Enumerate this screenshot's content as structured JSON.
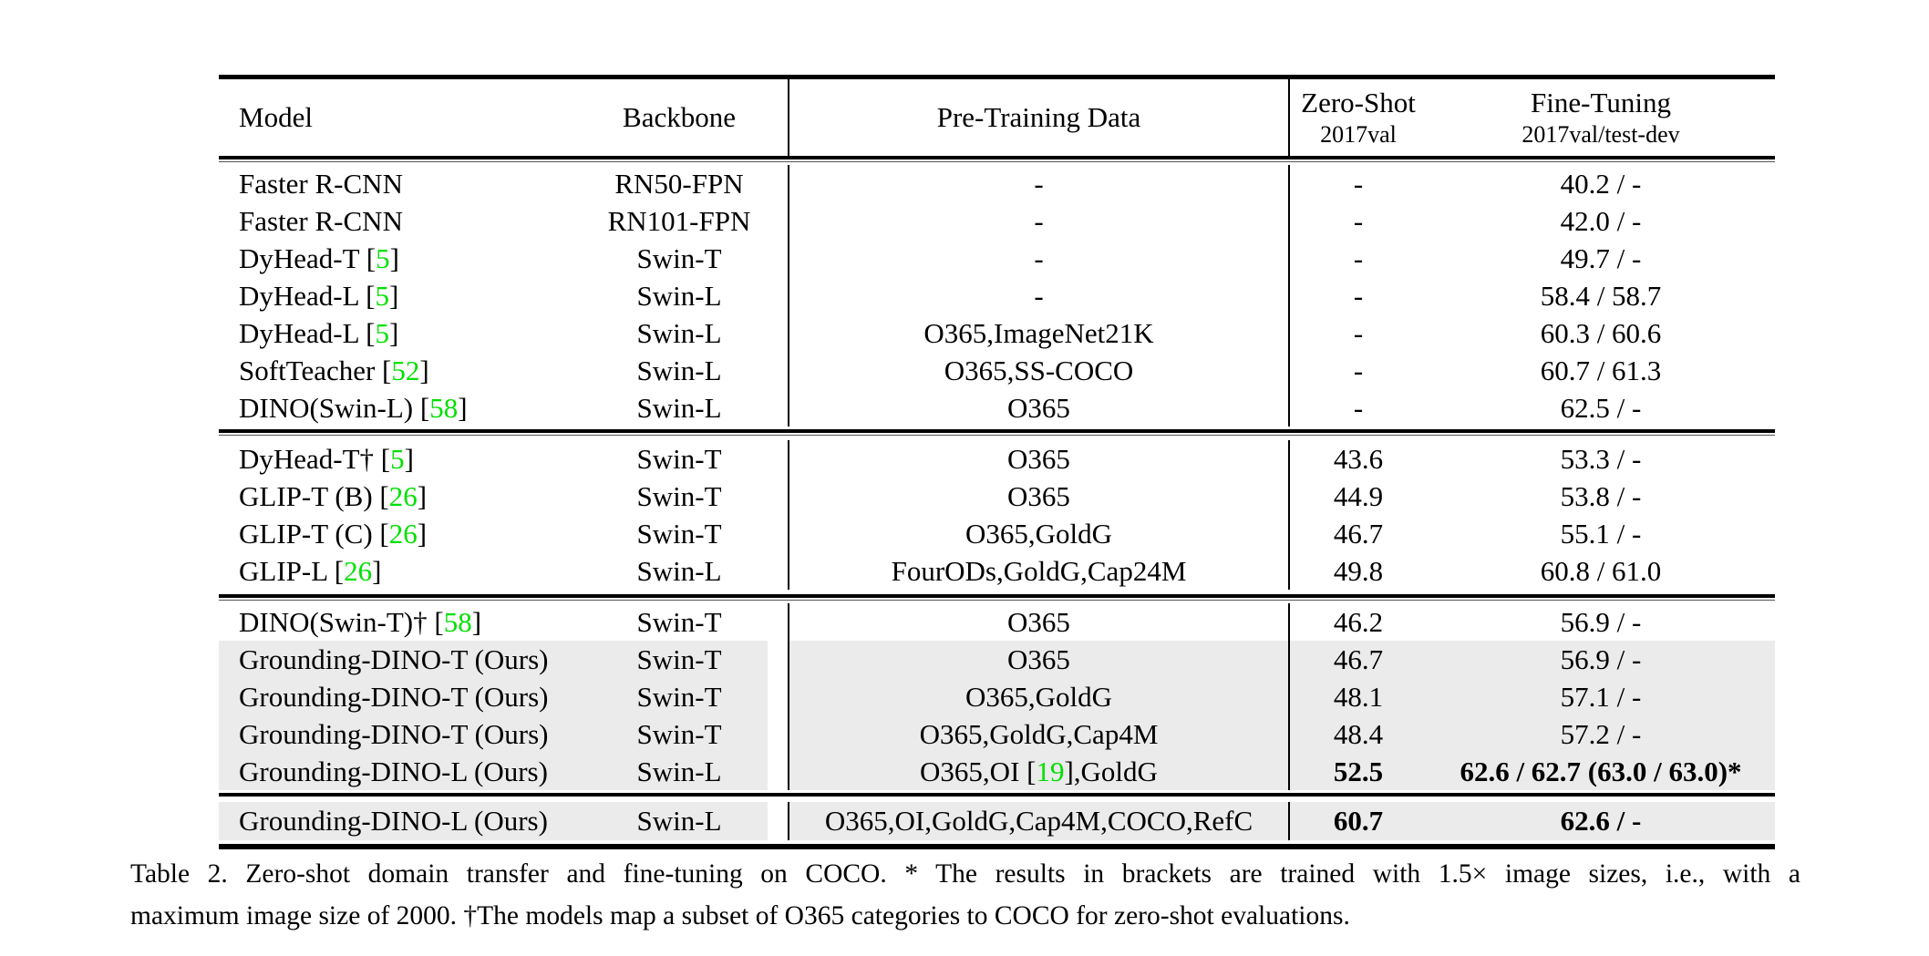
{
  "colors": {
    "citation_green": "#00e000",
    "row_highlight": "#ebebeb",
    "rule_black": "#000000"
  },
  "header": {
    "model": "Model",
    "backbone": "Backbone",
    "pretraining": "Pre-Training Data",
    "zero_shot_title": "Zero-Shot",
    "zero_shot_sub": "2017val",
    "fine_tuning_title": "Fine-Tuning",
    "fine_tuning_sub": "2017val/test-dev"
  },
  "sections": [
    {
      "rows": [
        {
          "model": [
            {
              "t": "Faster R-CNN"
            }
          ],
          "backbone": "RN50-FPN",
          "pretrain": [
            {
              "t": "-"
            }
          ],
          "zero_shot": "-",
          "fine_tune": "40.2 / -",
          "highlight": false,
          "bold": false
        },
        {
          "model": [
            {
              "t": "Faster R-CNN"
            }
          ],
          "backbone": "RN101-FPN",
          "pretrain": [
            {
              "t": "-"
            }
          ],
          "zero_shot": "-",
          "fine_tune": "42.0 / -",
          "highlight": false,
          "bold": false
        },
        {
          "model": [
            {
              "t": "DyHead-T ["
            },
            {
              "t": "5",
              "cite": true
            },
            {
              "t": "]"
            }
          ],
          "backbone": "Swin-T",
          "pretrain": [
            {
              "t": "-"
            }
          ],
          "zero_shot": "-",
          "fine_tune": "49.7 / -",
          "highlight": false,
          "bold": false
        },
        {
          "model": [
            {
              "t": "DyHead-L ["
            },
            {
              "t": "5",
              "cite": true
            },
            {
              "t": "]"
            }
          ],
          "backbone": "Swin-L",
          "pretrain": [
            {
              "t": "-"
            }
          ],
          "zero_shot": "-",
          "fine_tune": "58.4 / 58.7",
          "highlight": false,
          "bold": false
        },
        {
          "model": [
            {
              "t": "DyHead-L ["
            },
            {
              "t": "5",
              "cite": true
            },
            {
              "t": "]"
            }
          ],
          "backbone": "Swin-L",
          "pretrain": [
            {
              "t": "O365,ImageNet21K"
            }
          ],
          "zero_shot": "-",
          "fine_tune": "60.3 / 60.6",
          "highlight": false,
          "bold": false
        },
        {
          "model": [
            {
              "t": "SoftTeacher ["
            },
            {
              "t": "52",
              "cite": true
            },
            {
              "t": "]"
            }
          ],
          "backbone": "Swin-L",
          "pretrain": [
            {
              "t": "O365,SS-COCO"
            }
          ],
          "zero_shot": "-",
          "fine_tune": "60.7 / 61.3",
          "highlight": false,
          "bold": false
        },
        {
          "model": [
            {
              "t": "DINO(Swin-L) ["
            },
            {
              "t": "58",
              "cite": true
            },
            {
              "t": "]"
            }
          ],
          "backbone": "Swin-L",
          "pretrain": [
            {
              "t": "O365"
            }
          ],
          "zero_shot": "-",
          "fine_tune": "62.5 / -",
          "highlight": false,
          "bold": false
        }
      ]
    },
    {
      "rows": [
        {
          "model": [
            {
              "t": "DyHead-T† ["
            },
            {
              "t": "5",
              "cite": true
            },
            {
              "t": "]"
            }
          ],
          "backbone": "Swin-T",
          "pretrain": [
            {
              "t": "O365"
            }
          ],
          "zero_shot": "43.6",
          "fine_tune": "53.3 / -",
          "highlight": false,
          "bold": false
        },
        {
          "model": [
            {
              "t": "GLIP-T (B) ["
            },
            {
              "t": "26",
              "cite": true
            },
            {
              "t": "]"
            }
          ],
          "backbone": "Swin-T",
          "pretrain": [
            {
              "t": "O365"
            }
          ],
          "zero_shot": "44.9",
          "fine_tune": "53.8 / -",
          "highlight": false,
          "bold": false
        },
        {
          "model": [
            {
              "t": "GLIP-T (C) ["
            },
            {
              "t": "26",
              "cite": true
            },
            {
              "t": "]"
            }
          ],
          "backbone": "Swin-T",
          "pretrain": [
            {
              "t": "O365,GoldG"
            }
          ],
          "zero_shot": "46.7",
          "fine_tune": "55.1 / -",
          "highlight": false,
          "bold": false
        },
        {
          "model": [
            {
              "t": "GLIP-L ["
            },
            {
              "t": "26",
              "cite": true
            },
            {
              "t": "]"
            }
          ],
          "backbone": "Swin-L",
          "pretrain": [
            {
              "t": "FourODs,GoldG,Cap24M"
            }
          ],
          "zero_shot": "49.8",
          "fine_tune": "60.8 / 61.0",
          "highlight": false,
          "bold": false
        }
      ]
    },
    {
      "rows": [
        {
          "model": [
            {
              "t": "DINO(Swin-T)† ["
            },
            {
              "t": "58",
              "cite": true
            },
            {
              "t": "]"
            }
          ],
          "backbone": "Swin-T",
          "pretrain": [
            {
              "t": "O365"
            }
          ],
          "zero_shot": "46.2",
          "fine_tune": "56.9 / -",
          "highlight": false,
          "bold": false
        },
        {
          "model": [
            {
              "t": "Grounding-DINO-T (Ours)"
            }
          ],
          "backbone": "Swin-T",
          "pretrain": [
            {
              "t": "O365"
            }
          ],
          "zero_shot": "46.7",
          "fine_tune": "56.9 / -",
          "highlight": true,
          "bold": false
        },
        {
          "model": [
            {
              "t": "Grounding-DINO-T (Ours)"
            }
          ],
          "backbone": "Swin-T",
          "pretrain": [
            {
              "t": "O365,GoldG"
            }
          ],
          "zero_shot": "48.1",
          "fine_tune": "57.1 / -",
          "highlight": true,
          "bold": false
        },
        {
          "model": [
            {
              "t": "Grounding-DINO-T (Ours)"
            }
          ],
          "backbone": "Swin-T",
          "pretrain": [
            {
              "t": "O365,GoldG,Cap4M"
            }
          ],
          "zero_shot": "48.4",
          "fine_tune": "57.2 / -",
          "highlight": true,
          "bold": false
        },
        {
          "model": [
            {
              "t": "Grounding-DINO-L (Ours)"
            }
          ],
          "backbone": "Swin-L",
          "pretrain": [
            {
              "t": "O365,OI ["
            },
            {
              "t": "19",
              "cite": true
            },
            {
              "t": "],GoldG"
            }
          ],
          "zero_shot": "52.5",
          "fine_tune": "62.6 / 62.7 (63.0 / 63.0)*",
          "highlight": true,
          "bold": true
        }
      ]
    },
    {
      "rows": [
        {
          "model": [
            {
              "t": "Grounding-DINO-L (Ours)"
            }
          ],
          "backbone": "Swin-L",
          "pretrain": [
            {
              "t": "O365,OI,GoldG,Cap4M,COCO,RefC"
            }
          ],
          "zero_shot": "60.7",
          "fine_tune": "62.6 / -",
          "highlight": true,
          "bold": true
        }
      ]
    }
  ],
  "caption": {
    "line1": "Table 2. Zero-shot domain transfer and fine-tuning on COCO. * The results in brackets are trained with 1.5× image sizes, i.e., with a",
    "line2": "maximum image size of 2000. †The models map a subset of O365 categories to COCO for zero-shot evaluations."
  }
}
